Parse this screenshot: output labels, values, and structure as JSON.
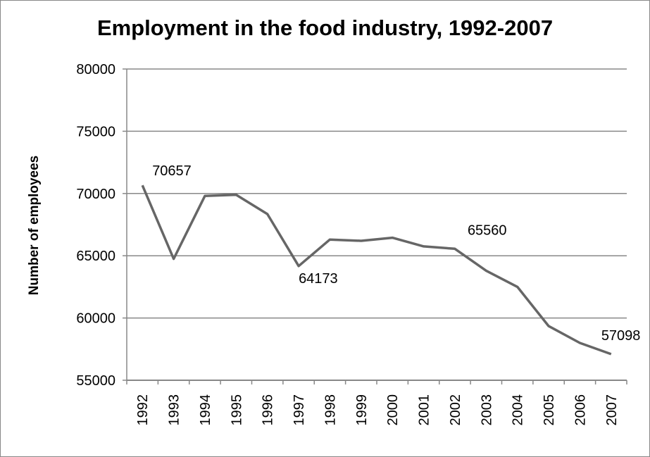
{
  "chart_data": {
    "type": "line",
    "title": "Employment in the food industry, 1992-2007",
    "xlabel": "",
    "ylabel": "Number of employees",
    "ylim": [
      55000,
      80000
    ],
    "yticks": [
      55000,
      60000,
      65000,
      70000,
      75000,
      80000
    ],
    "grid": true,
    "legend": "none",
    "line_color": "#666666",
    "categories": [
      "1992",
      "1993",
      "1994",
      "1995",
      "1996",
      "1997",
      "1998",
      "1999",
      "2000",
      "2001",
      "2002",
      "2003",
      "2004",
      "2005",
      "2006",
      "2007"
    ],
    "series": [
      {
        "values": [
          70657,
          64750,
          69800,
          69900,
          68350,
          64173,
          66300,
          66200,
          66450,
          65750,
          65560,
          63800,
          62500,
          59350,
          58000,
          57098
        ]
      }
    ],
    "data_labels": [
      {
        "index": 0,
        "text": "70657"
      },
      {
        "index": 5,
        "text": "64173"
      },
      {
        "index": 10,
        "text": "65560"
      },
      {
        "index": 15,
        "text": "57098"
      }
    ]
  }
}
